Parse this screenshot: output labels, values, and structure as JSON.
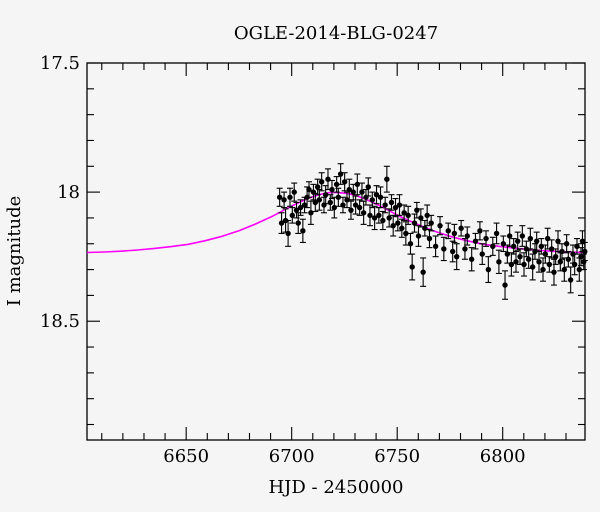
{
  "figure": {
    "background_color": "#f5f5f5",
    "axis_color": "#000000"
  },
  "chart_data": {
    "type": "scatter",
    "title": "OGLE-2014-BLG-0247",
    "xlabel": "HJD - 2450000",
    "ylabel": "I magnitude",
    "xlim": [
      6603,
      6839
    ],
    "ylim": [
      17.5,
      18.96
    ],
    "y_axis_inverted": true,
    "grid": false,
    "legend": false,
    "x_ticks_major": [
      6650,
      6700,
      6750,
      6800
    ],
    "x_tick_labels": [
      "6650",
      "6700",
      "6750",
      "6800"
    ],
    "x_tick_minor_step": 10,
    "y_ticks_major": [
      17.5,
      18,
      18.5
    ],
    "y_tick_labels": [
      "17.5",
      "18",
      "18.5"
    ],
    "y_tick_minor_step": 0.1,
    "series": [
      {
        "name": "microlensing-model",
        "type": "line",
        "color": "#ff00ff",
        "points": [
          [
            6603,
            18.234
          ],
          [
            6611,
            18.232
          ],
          [
            6619,
            18.229
          ],
          [
            6627,
            18.224
          ],
          [
            6635,
            18.218
          ],
          [
            6643,
            18.211
          ],
          [
            6651,
            18.202
          ],
          [
            6659,
            18.188
          ],
          [
            6667,
            18.171
          ],
          [
            6675,
            18.15
          ],
          [
            6683,
            18.123
          ],
          [
            6691,
            18.093
          ],
          [
            6695,
            18.076
          ],
          [
            6699,
            18.058
          ],
          [
            6703,
            18.042
          ],
          [
            6707,
            18.027
          ],
          [
            6711,
            18.015
          ],
          [
            6715,
            18.006
          ],
          [
            6718,
            18.002
          ],
          [
            6721,
            18.001
          ],
          [
            6724,
            18.003
          ],
          [
            6727,
            18.006
          ],
          [
            6731,
            18.015
          ],
          [
            6735,
            18.027
          ],
          [
            6739,
            18.042
          ],
          [
            6743,
            18.058
          ],
          [
            6747,
            18.076
          ],
          [
            6751,
            18.093
          ],
          [
            6759,
            18.123
          ],
          [
            6767,
            18.15
          ],
          [
            6775,
            18.171
          ],
          [
            6783,
            18.188
          ],
          [
            6791,
            18.202
          ],
          [
            6799,
            18.211
          ],
          [
            6807,
            18.218
          ],
          [
            6815,
            18.224
          ],
          [
            6823,
            18.229
          ],
          [
            6831,
            18.232
          ],
          [
            6839,
            18.234
          ]
        ]
      },
      {
        "name": "ogle-observations",
        "type": "scatter-errorbar",
        "color": "#000000",
        "marker_radius": 2.7,
        "points": [
          [
            6694.3,
            18.02,
            0.035
          ],
          [
            6695.2,
            18.12,
            0.04
          ],
          [
            6696.4,
            18.03,
            0.03
          ],
          [
            6697.1,
            18.11,
            0.045
          ],
          [
            6698.3,
            18.16,
            0.05
          ],
          [
            6699.2,
            18.02,
            0.035
          ],
          [
            6700.3,
            18.09,
            0.03
          ],
          [
            6701.2,
            18.0,
            0.035
          ],
          [
            6702.3,
            18.07,
            0.03
          ],
          [
            6703.1,
            18.12,
            0.04
          ],
          [
            6704.2,
            18.06,
            0.03
          ],
          [
            6705.3,
            18.15,
            0.045
          ],
          [
            6706.1,
            18.05,
            0.03
          ],
          [
            6707.3,
            18.02,
            0.04
          ],
          [
            6708.2,
            17.99,
            0.03
          ],
          [
            6709.1,
            18.08,
            0.045
          ],
          [
            6710.3,
            18.0,
            0.03
          ],
          [
            6711.2,
            18.04,
            0.035
          ],
          [
            6712.3,
            17.98,
            0.03
          ],
          [
            6713.1,
            18.03,
            0.04
          ],
          [
            6714.2,
            17.96,
            0.035
          ],
          [
            6715.3,
            18.05,
            0.03
          ],
          [
            6716.1,
            18.01,
            0.035
          ],
          [
            6717.2,
            17.95,
            0.04
          ],
          [
            6718.3,
            18.04,
            0.03
          ],
          [
            6719.1,
            17.99,
            0.035
          ],
          [
            6720.2,
            18.06,
            0.04
          ],
          [
            6721.3,
            17.97,
            0.03
          ],
          [
            6722.1,
            18.02,
            0.035
          ],
          [
            6723.2,
            17.93,
            0.04
          ],
          [
            6724.3,
            18.05,
            0.03
          ],
          [
            6725.1,
            17.96,
            0.035
          ],
          [
            6726.2,
            18.03,
            0.03
          ],
          [
            6727.3,
            17.99,
            0.04
          ],
          [
            6728.1,
            18.07,
            0.035
          ],
          [
            6729.2,
            18.0,
            0.03
          ],
          [
            6730.3,
            18.05,
            0.035
          ],
          [
            6731.1,
            17.97,
            0.04
          ],
          [
            6732.2,
            18.06,
            0.03
          ],
          [
            6733.3,
            18.0,
            0.035
          ],
          [
            6734.1,
            18.08,
            0.045
          ],
          [
            6735.2,
            18.02,
            0.03
          ],
          [
            6736.3,
            17.98,
            0.035
          ],
          [
            6737.1,
            18.09,
            0.04
          ],
          [
            6738.2,
            18.03,
            0.03
          ],
          [
            6739.3,
            18.1,
            0.045
          ],
          [
            6740.2,
            18.01,
            0.035
          ],
          [
            6741.3,
            18.09,
            0.03
          ],
          [
            6742.1,
            18.02,
            0.04
          ],
          [
            6743.2,
            18.11,
            0.035
          ],
          [
            6744.3,
            18.05,
            0.03
          ],
          [
            6745.1,
            17.95,
            0.05
          ],
          [
            6746.2,
            18.1,
            0.035
          ],
          [
            6747.3,
            18.04,
            0.03
          ],
          [
            6748.1,
            18.13,
            0.04
          ],
          [
            6749.2,
            18.06,
            0.035
          ],
          [
            6750.3,
            18.12,
            0.03
          ],
          [
            6751.1,
            18.05,
            0.04
          ],
          [
            6752.2,
            18.14,
            0.035
          ],
          [
            6753.3,
            18.08,
            0.03
          ],
          [
            6754.1,
            18.16,
            0.045
          ],
          [
            6755.2,
            18.09,
            0.035
          ],
          [
            6756.3,
            18.2,
            0.04
          ],
          [
            6757.1,
            18.29,
            0.05
          ],
          [
            6758.2,
            18.12,
            0.035
          ],
          [
            6759.3,
            18.07,
            0.03
          ],
          [
            6760.1,
            18.17,
            0.04
          ],
          [
            6761.2,
            18.1,
            0.035
          ],
          [
            6762.3,
            18.31,
            0.055
          ],
          [
            6763.1,
            18.14,
            0.03
          ],
          [
            6764.2,
            18.09,
            0.04
          ],
          [
            6765.3,
            18.18,
            0.035
          ],
          [
            6766.1,
            18.12,
            0.03
          ],
          [
            6768.2,
            18.21,
            0.04
          ],
          [
            6770.3,
            18.13,
            0.035
          ],
          [
            6772.1,
            18.22,
            0.045
          ],
          [
            6774.2,
            18.15,
            0.03
          ],
          [
            6776.3,
            18.23,
            0.04
          ],
          [
            6777.1,
            18.16,
            0.035
          ],
          [
            6778.2,
            18.25,
            0.05
          ],
          [
            6780.3,
            18.14,
            0.03
          ],
          [
            6782.1,
            18.22,
            0.04
          ],
          [
            6783.2,
            18.17,
            0.035
          ],
          [
            6785.3,
            18.26,
            0.045
          ],
          [
            6787.1,
            18.19,
            0.03
          ],
          [
            6789.2,
            18.15,
            0.035
          ],
          [
            6790.3,
            18.24,
            0.04
          ],
          [
            6792.1,
            18.18,
            0.03
          ],
          [
            6793.2,
            18.3,
            0.05
          ],
          [
            6795.3,
            18.21,
            0.035
          ],
          [
            6797.1,
            18.16,
            0.04
          ],
          [
            6798.2,
            18.27,
            0.045
          ],
          [
            6800.3,
            18.2,
            0.03
          ],
          [
            6801.1,
            18.36,
            0.055
          ],
          [
            6802.2,
            18.24,
            0.035
          ],
          [
            6803.3,
            18.17,
            0.04
          ],
          [
            6804.1,
            18.28,
            0.045
          ],
          [
            6805.2,
            18.21,
            0.03
          ],
          [
            6806.3,
            18.27,
            0.04
          ],
          [
            6807.1,
            18.19,
            0.035
          ],
          [
            6808.2,
            18.25,
            0.03
          ],
          [
            6809.3,
            18.17,
            0.04
          ],
          [
            6810.1,
            18.28,
            0.045
          ],
          [
            6811.2,
            18.22,
            0.03
          ],
          [
            6812.3,
            18.26,
            0.035
          ],
          [
            6813.1,
            18.18,
            0.04
          ],
          [
            6814.2,
            18.29,
            0.05
          ],
          [
            6815.3,
            18.23,
            0.03
          ],
          [
            6816.1,
            18.19,
            0.035
          ],
          [
            6817.2,
            18.27,
            0.04
          ],
          [
            6818.3,
            18.21,
            0.03
          ],
          [
            6819.1,
            18.3,
            0.045
          ],
          [
            6820.2,
            18.24,
            0.035
          ],
          [
            6821.3,
            18.18,
            0.04
          ],
          [
            6822.1,
            18.28,
            0.03
          ],
          [
            6823.2,
            18.22,
            0.035
          ],
          [
            6824.3,
            18.31,
            0.05
          ],
          [
            6825.1,
            18.25,
            0.03
          ],
          [
            6826.2,
            18.19,
            0.04
          ],
          [
            6827.3,
            18.27,
            0.035
          ],
          [
            6828.1,
            18.23,
            0.03
          ],
          [
            6829.2,
            18.3,
            0.045
          ],
          [
            6830.3,
            18.2,
            0.035
          ],
          [
            6831.1,
            18.26,
            0.03
          ],
          [
            6832.2,
            18.34,
            0.05
          ],
          [
            6833.3,
            18.24,
            0.035
          ],
          [
            6834.1,
            18.28,
            0.04
          ],
          [
            6835.2,
            18.21,
            0.03
          ],
          [
            6836.3,
            18.3,
            0.045
          ],
          [
            6837.1,
            18.25,
            0.035
          ],
          [
            6837.8,
            18.19,
            0.04
          ],
          [
            6838.4,
            18.27,
            0.03
          ],
          [
            6838.9,
            18.23,
            0.035
          ]
        ]
      }
    ]
  }
}
